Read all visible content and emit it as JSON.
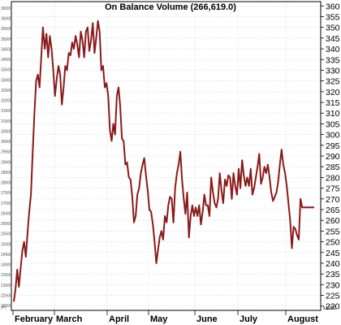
{
  "chart_data": {
    "type": "line",
    "title": "On Balance Volume (266,619.0)",
    "y_right": {
      "ylim": [
        218,
        362
      ],
      "ticks": [
        220,
        225,
        230,
        235,
        240,
        245,
        250,
        255,
        260,
        265,
        270,
        275,
        280,
        285,
        290,
        295,
        300,
        305,
        310,
        315,
        320,
        325,
        330,
        335,
        340,
        345,
        350,
        355,
        360
      ],
      "unit_label": "x1000"
    },
    "y_left": {
      "ticks": [
        "22000",
        "22500",
        "23000",
        "23500",
        "24000",
        "24500",
        "25000",
        "25500",
        "26000",
        "26500",
        "27000",
        "27500",
        "28000",
        "28500",
        "29000",
        "29500",
        "30000",
        "30500",
        "31000",
        "31500",
        "32000",
        "32500",
        "33000",
        "33500",
        "34000",
        "34500",
        "35000",
        "35500",
        "36000",
        "36500"
      ],
      "bottom_mark": "(P)"
    },
    "x_ticks": [
      "February",
      "March",
      "April",
      "May",
      "June",
      "July",
      "August"
    ],
    "grid": true,
    "series": [
      {
        "color": "#8b1a1a",
        "x": [
          0,
          1,
          2,
          3,
          4,
          5,
          6,
          7,
          8,
          9,
          10,
          11,
          12,
          13,
          14,
          15,
          16,
          17,
          18,
          19,
          20,
          21,
          22,
          23,
          24,
          25,
          26,
          27,
          28,
          29,
          30,
          31,
          32,
          33,
          34,
          35,
          36,
          37,
          38,
          39,
          40,
          41,
          42,
          43,
          44,
          45,
          46,
          47,
          48,
          49,
          50,
          51,
          52,
          53,
          54,
          55,
          56,
          57,
          58,
          59,
          60,
          61,
          62,
          63,
          64,
          65,
          66,
          67,
          68,
          69,
          70,
          71,
          72,
          73,
          74,
          75,
          76,
          77,
          78,
          79,
          80,
          81,
          82,
          83,
          84,
          85,
          86,
          87,
          88,
          89,
          90,
          91,
          92,
          93,
          94,
          95,
          96,
          97,
          98,
          99,
          100,
          101,
          102,
          103,
          104,
          105,
          106,
          107,
          108,
          109,
          110,
          111,
          112,
          113,
          114,
          115,
          116,
          117,
          118,
          119,
          120,
          121,
          122,
          123,
          124,
          125,
          126,
          127,
          128,
          129,
          130,
          131,
          132,
          133,
          134,
          135,
          136,
          137,
          138,
          139,
          140,
          141,
          142,
          143,
          144,
          145,
          146,
          147,
          148,
          149,
          150,
          151,
          152,
          153,
          154,
          155,
          156,
          157,
          158,
          159,
          160,
          161,
          162,
          163,
          164,
          165,
          166,
          167,
          168,
          169,
          170,
          171,
          172,
          173,
          174,
          175
        ],
        "values": [
          222,
          228,
          237,
          229,
          238,
          246,
          250,
          243,
          254,
          264,
          272,
          292,
          310,
          325,
          328,
          322,
          336,
          350,
          340,
          347,
          336,
          346,
          340,
          330,
          318,
          326,
          332,
          328,
          314,
          322,
          332,
          330,
          338,
          337,
          343,
          340,
          346,
          342,
          336,
          348,
          344,
          336,
          348,
          350,
          339,
          344,
          352,
          338,
          345,
          353,
          348,
          330,
          332,
          322,
          324,
          318,
          302,
          297,
          305,
          300,
          318,
          322,
          313,
          298,
          297,
          286,
          287,
          280,
          279,
          271,
          259,
          262,
          272,
          275,
          282,
          286,
          289,
          281,
          274,
          265,
          264,
          258,
          250,
          240,
          246,
          252,
          255,
          251,
          262,
          259,
          267,
          271,
          270,
          259,
          275,
          282,
          286,
          292,
          279,
          270,
          263,
          273,
          252,
          262,
          267,
          262,
          266,
          262,
          267,
          258,
          264,
          272,
          267,
          267,
          262,
          280,
          273,
          268,
          266,
          270,
          282,
          274,
          268,
          279,
          276,
          281,
          280,
          270,
          282,
          276,
          272,
          284,
          275,
          288,
          281,
          276,
          280,
          276,
          284,
          272,
          275,
          280,
          285,
          291,
          277,
          280,
          285,
          282,
          286,
          280,
          273,
          269,
          271,
          273,
          278,
          286,
          293,
          286,
          282,
          276,
          268,
          260,
          247,
          257,
          256,
          253,
          251,
          270,
          266,
          266,
          266,
          266,
          266,
          266,
          266,
          266
        ]
      }
    ]
  }
}
